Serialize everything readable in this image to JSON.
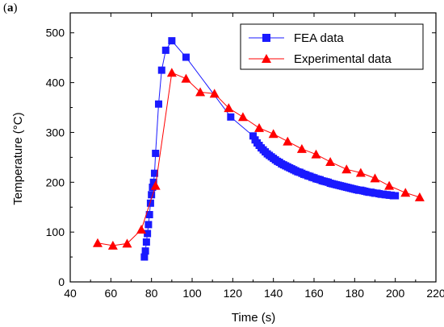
{
  "panel_label": "a",
  "chart_data": {
    "type": "line",
    "title": "",
    "xlabel": "Time (s)",
    "ylabel": "Temperature (°C)",
    "xlim": [
      40,
      220
    ],
    "ylim": [
      0,
      540
    ],
    "xticks": [
      40,
      60,
      80,
      100,
      120,
      140,
      160,
      180,
      200,
      220
    ],
    "yticks": [
      0,
      100,
      200,
      300,
      400,
      500
    ],
    "grid": false,
    "legend_position": "top-right",
    "series": [
      {
        "name": "FEA data",
        "color": "#1a1aff",
        "marker": "square",
        "x": [
          76.5,
          77,
          77.5,
          78,
          78.5,
          79,
          79.5,
          80,
          80.5,
          81,
          81.5,
          82,
          83.5,
          85,
          87,
          90,
          97,
          119,
          130,
          131,
          132,
          133,
          134,
          135,
          136,
          137,
          138,
          139,
          140,
          141,
          142,
          143,
          144,
          145,
          146,
          147,
          148,
          149,
          150,
          151,
          152,
          153,
          154,
          155,
          156,
          157,
          158,
          159,
          160,
          161,
          162,
          163,
          164,
          165,
          166,
          167,
          168,
          169,
          170,
          171,
          172,
          173,
          174,
          175,
          176,
          177,
          178,
          179,
          180,
          181,
          182,
          183,
          184,
          185,
          186,
          187,
          188,
          189,
          190,
          191,
          192,
          193,
          194,
          195,
          196,
          197,
          198,
          199,
          200
        ],
        "y": [
          50,
          62,
          80,
          97,
          115,
          135,
          158,
          175,
          190,
          200,
          218,
          258,
          357,
          425,
          465,
          484,
          451,
          331,
          293,
          285,
          279,
          274,
          269,
          265,
          261,
          257,
          254,
          251,
          248,
          245,
          242,
          240,
          237,
          235,
          233,
          231,
          229,
          227,
          225,
          223,
          221,
          220,
          218,
          216,
          215,
          213,
          212,
          210,
          209,
          207,
          206,
          205,
          203,
          202,
          201,
          200,
          198,
          197,
          196,
          195,
          194,
          193,
          192,
          191,
          190,
          189,
          188,
          187,
          186,
          185,
          184,
          184,
          183,
          182,
          181,
          180,
          180,
          179,
          178,
          178,
          177,
          176,
          176,
          175,
          175,
          174,
          174,
          173,
          173
        ]
      },
      {
        "name": "Experimental data",
        "color": "#ff0000",
        "marker": "triangle",
        "x": [
          53.5,
          61,
          68,
          75,
          82,
          90,
          97,
          104,
          111,
          118,
          125,
          133,
          140,
          147,
          154,
          161,
          168,
          176,
          183,
          190,
          197,
          205,
          212
        ],
        "y": [
          78,
          73,
          77,
          105,
          193,
          420,
          408,
          381,
          378,
          349,
          331,
          309,
          297,
          282,
          267,
          256,
          241,
          226,
          219,
          208,
          193,
          179,
          170
        ]
      }
    ]
  }
}
